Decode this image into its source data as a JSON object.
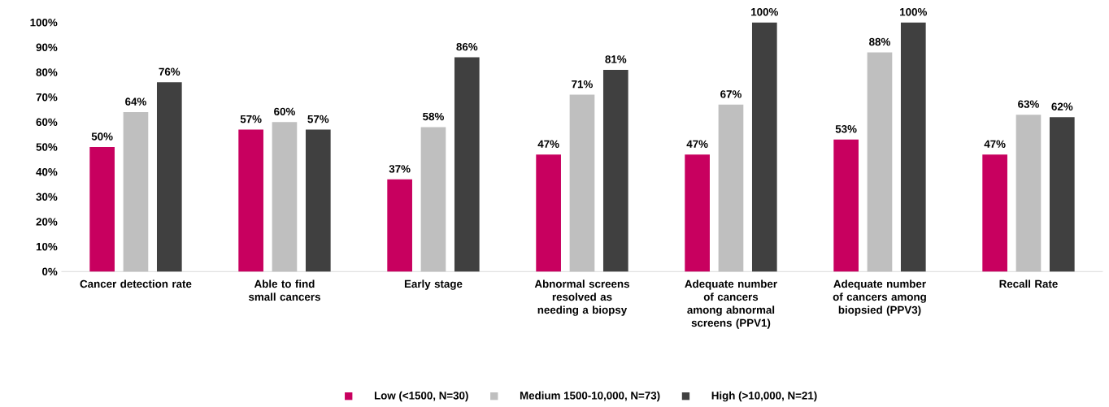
{
  "chart_data": {
    "type": "bar",
    "categories": [
      "Cancer detection rate",
      "Able to find small cancers",
      "Early stage",
      "Abnormal screens resolved as needing a biopsy",
      "Adequate number of cancers among abnormal screens (PPV1)",
      "Adequate number of cancers among biopsied (PPV3)",
      "Recall Rate"
    ],
    "series": [
      {
        "name": "Low  (<1500, N=30)",
        "color": "#c8005f",
        "values": [
          50,
          57,
          37,
          47,
          47,
          53,
          47
        ],
        "value_labels": [
          "50%",
          "57%",
          "37%",
          "47%",
          "47%",
          "53%",
          "47%"
        ]
      },
      {
        "name": "Medium 1500-10,000, N=73)",
        "color": "#bfbfbf",
        "values": [
          64,
          60,
          58,
          71,
          67,
          88,
          63
        ],
        "value_labels": [
          "64%",
          "60%",
          "58%",
          "71%",
          "67%",
          "88%",
          "63%"
        ]
      },
      {
        "name": "High (>10,000, N=21)",
        "color": "#404040",
        "values": [
          76,
          57,
          86,
          81,
          100,
          100,
          62
        ],
        "value_labels": [
          "76%",
          "57%",
          "86%",
          "81%",
          "100%",
          "100%",
          "62%"
        ]
      }
    ],
    "ylim": [
      0,
      100
    ],
    "yticks": [
      {
        "value": 0,
        "label": "0%"
      },
      {
        "value": 10,
        "label": "10%"
      },
      {
        "value": 20,
        "label": "20%"
      },
      {
        "value": 30,
        "label": "30%"
      },
      {
        "value": 40,
        "label": "40%"
      },
      {
        "value": 50,
        "label": "50%"
      },
      {
        "value": 60,
        "label": "60%"
      },
      {
        "value": 70,
        "label": "70%"
      },
      {
        "value": 80,
        "label": "80%"
      },
      {
        "value": 90,
        "label": "90%"
      },
      {
        "value": 100,
        "label": "100%"
      }
    ],
    "legend": "bottom"
  }
}
